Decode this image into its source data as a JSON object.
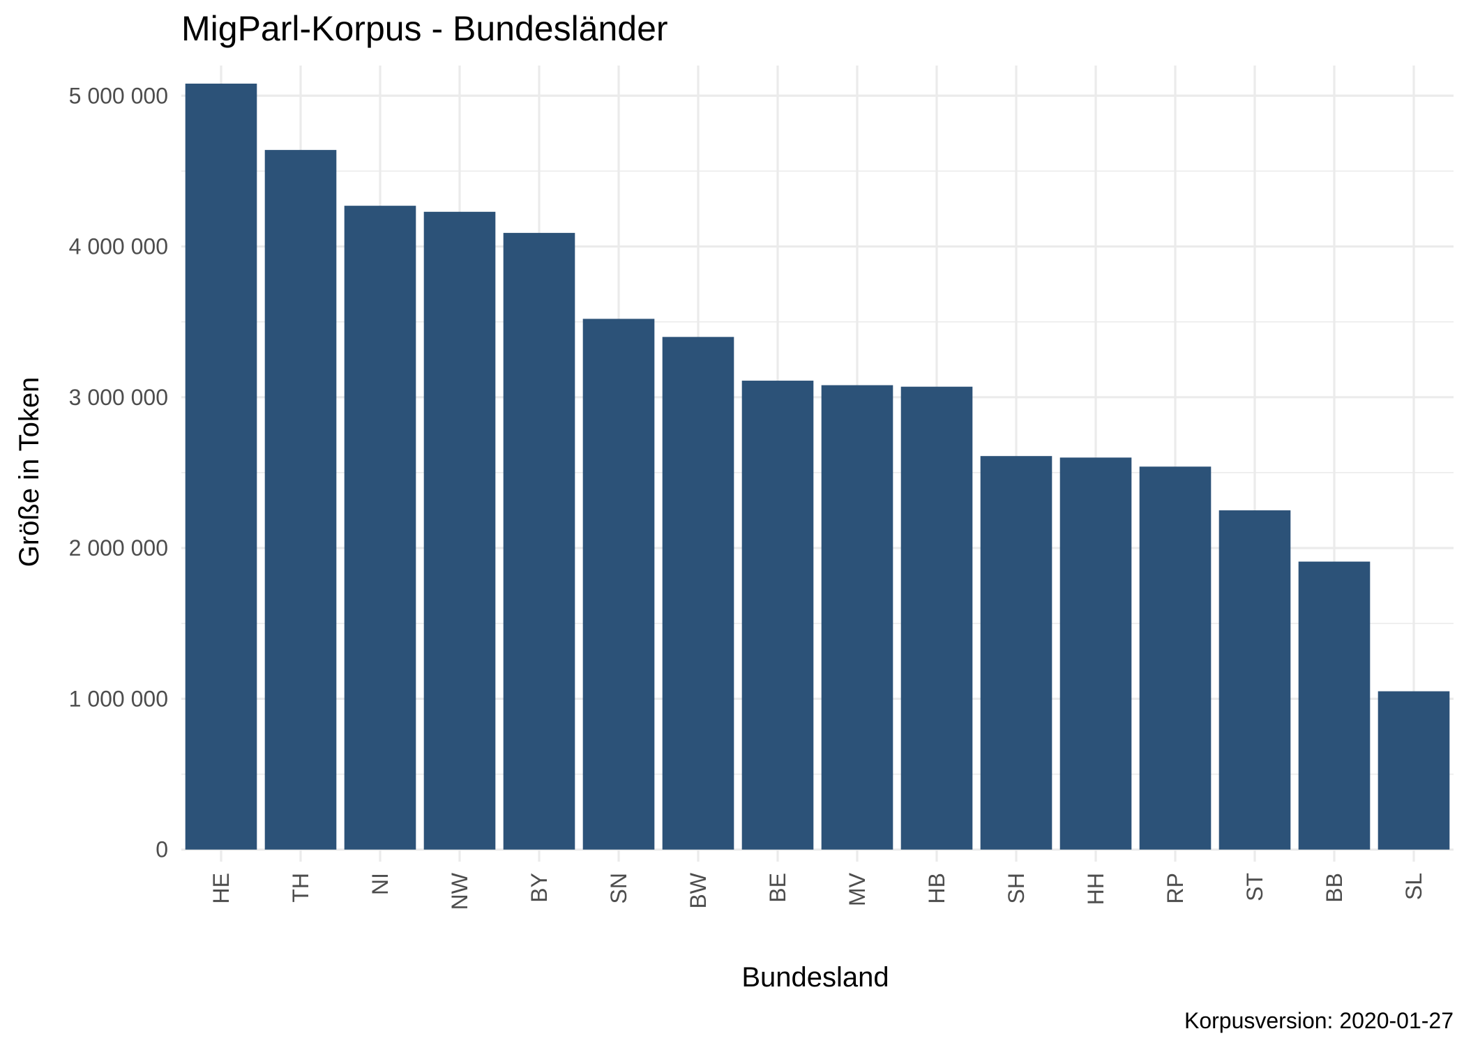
{
  "chart_data": {
    "type": "bar",
    "title": "MigParl-Korpus - Bundesländer",
    "xlabel": "Bundesland",
    "ylabel": "Größe in Token",
    "caption": "Korpusversion: 2020-01-27",
    "categories": [
      "HE",
      "TH",
      "NI",
      "NW",
      "BY",
      "SN",
      "BW",
      "BE",
      "MV",
      "HB",
      "SH",
      "HH",
      "RP",
      "ST",
      "BB",
      "SL"
    ],
    "values": [
      5080000,
      4640000,
      4270000,
      4230000,
      4090000,
      3520000,
      3400000,
      3110000,
      3080000,
      3070000,
      2610000,
      2600000,
      2540000,
      2250000,
      1910000,
      1050000
    ],
    "ylim": [
      -80000,
      5200000
    ],
    "yticks": [
      0,
      1000000,
      2000000,
      3000000,
      4000000,
      5000000
    ],
    "ytick_labels": [
      "0",
      "1 000 000",
      "2 000 000",
      "3 000 000",
      "4 000 000",
      "5 000 000"
    ],
    "bar_color": "#2c5278",
    "grid": true,
    "legend": "none"
  }
}
